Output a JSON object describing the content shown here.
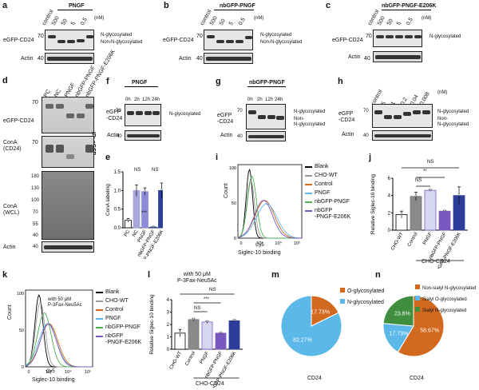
{
  "panels": {
    "a": {
      "label": "a",
      "header": "PNGF",
      "lanes": [
        "control",
        "500",
        "50",
        "5",
        "0.5"
      ],
      "unit": "(nM)",
      "row1": "eGFP-CD24",
      "row2": "Actin",
      "mw1": "70",
      "mw2": "40",
      "ann1": "N-glycosylated",
      "ann2": "Non-N-glycosylated"
    },
    "b": {
      "label": "b",
      "header": "nbGFP-PNGF",
      "lanes": [
        "control",
        "500",
        "50",
        "5",
        "0.5"
      ],
      "unit": "(nM)",
      "row1": "eGFP-CD24",
      "row2": "Actin",
      "mw1": "70",
      "mw2": "40",
      "ann1": "N-glycosylated",
      "ann2": "Non-N-glycosylated"
    },
    "c": {
      "label": "c",
      "header": "nbGFP-PNGF-E206K",
      "lanes": [
        "control",
        "500",
        "50",
        "5",
        "0.5"
      ],
      "unit": "(nM)",
      "row1": "eGFP-CD24",
      "row2": "Actin",
      "mw1": "70",
      "mw2": "40",
      "ann1": "N-glycosylated"
    },
    "d": {
      "label": "d",
      "lanes": [
        "PC",
        "NC",
        "PNGF",
        "nbGFP-PNGF",
        "nbGFP-PNGF-E206K"
      ],
      "rows": [
        "eGFP-CD24",
        "ConA\n(CD24)",
        "ConA\n(WCL)",
        "Actin"
      ],
      "ip": "IP: eGFP",
      "mws": [
        "70",
        "70",
        "180",
        "130",
        "100",
        "70",
        "55",
        "40",
        "40"
      ]
    },
    "e": {
      "label": "e",
      "ylabel": "ConA labeling",
      "ns1": "NS",
      "ns2": "NS",
      "stars": "***"
    },
    "f": {
      "label": "f",
      "header": "PNGF",
      "lanes": [
        "0h",
        "2h",
        "12h",
        "24h"
      ],
      "row1": "eGFP\n-CD24",
      "row2": "Actin",
      "mw1": "70",
      "mw2": "40",
      "ann1": "N-glycosylated"
    },
    "g": {
      "label": "g",
      "header": "nbGFP-PNGF",
      "lanes": [
        "0h",
        "2h",
        "12h",
        "24h"
      ],
      "row1": "eGFP\n-CD24",
      "row2": "Actin",
      "mw1": "70",
      "mw2": "40",
      "ann1": "N-glycosylated",
      "ann2": "Non-\nN-glycosylated"
    },
    "h": {
      "label": "h",
      "lanes": [
        "control",
        "5",
        "1",
        "0.2",
        "0.04",
        "0.008"
      ],
      "unit": "(nM)",
      "row1": "eGFP\n-CD24",
      "row2": "Actin",
      "mw1": "70",
      "mw2": "40",
      "ann1": "N-glycosylated",
      "ann2": "Non-\nN-glycosylated"
    },
    "i": {
      "label": "i",
      "ylabel": "Count",
      "xaxis": "Cy5",
      "xlabel": "Siglec-10 binding",
      "legend": [
        "Blank",
        "CHO-WT",
        "Control",
        "PNGF",
        "nbGFP-PNGF",
        "nbGFP\n-PNGF-E206K"
      ]
    },
    "j": {
      "label": "j",
      "ylabel": "Relative Siglec-10 binding",
      "group": "CHO-CD24",
      "ns_top": "NS",
      "stars": "**",
      "ns_mid": "NS"
    },
    "k": {
      "label": "k",
      "ylabel": "Count",
      "xaxis": "Cy5",
      "xlabel": "Siglec-10 binding",
      "inset": "with 50 μM\nP-3Fax-Neu5Ac",
      "legend": [
        "Blank",
        "CHO-WT",
        "Control",
        "PNGF",
        "nbGFP-PNGF",
        "nbGFP\n-PNGF-E206K"
      ]
    },
    "l": {
      "label": "l",
      "title": "with 50 μM\nP-3Fax-Neu5Ac",
      "ylabel": "Relative Siglec-10 binding",
      "group": "CHO-CD24",
      "ns_top": "NS",
      "stars": "***",
      "ns_mid": "NS"
    },
    "m": {
      "label": "m",
      "caption": "CD24",
      "legend": [
        "O-glycosylated",
        "N-glycosylated"
      ]
    },
    "n": {
      "label": "n",
      "caption": "CD24",
      "legend": [
        "Non-sialyl N-glycosylated",
        "Sialyl O-glycosylated",
        "Sialyl N-glycosylated"
      ]
    }
  },
  "colors": {
    "orange": "#d2691e",
    "blue": "#5bb8e8",
    "green": "#3f8f3f",
    "gray": "#888888",
    "purple": "#7a58c0",
    "navy": "#2c3e99",
    "lavender": "#a9a6dd",
    "lightpurple": "#8e8cd8"
  },
  "chart_data": [
    {
      "type": "bar",
      "panel": "e",
      "categories": [
        "PC",
        "NC",
        "PNGF",
        "nbGFP-PNGF",
        "nbGFP-PNGF-E206K"
      ],
      "values": [
        0.2,
        1.0,
        0.97,
        0.02,
        1.0
      ],
      "errors": [
        0.05,
        0.15,
        0.1,
        0.01,
        0.2
      ],
      "ylim": [
        0,
        1.5
      ],
      "yticks": [
        0.0,
        0.5,
        1.0,
        1.5
      ]
    },
    {
      "type": "bar",
      "panel": "j",
      "categories": [
        "CHO-WT",
        "Control",
        "PNGF",
        "nbGFP-PNGF",
        "nbGFP-PNGF-E206K"
      ],
      "values": [
        1.8,
        3.9,
        4.6,
        2.2,
        4.0
      ],
      "errors": [
        0.4,
        0.5,
        0.1,
        0.05,
        1.0
      ],
      "ylim": [
        0,
        6
      ],
      "yticks": [
        0,
        2,
        4,
        6
      ]
    },
    {
      "type": "bar",
      "panel": "l",
      "categories": [
        "CHO-WT",
        "Control",
        "PNGF",
        "nbGFP-PNGF",
        "nbGFP-PNGF-E206K"
      ],
      "values": [
        1.3,
        2.4,
        2.2,
        1.3,
        2.3
      ],
      "errors": [
        0.3,
        0.1,
        0.1,
        0.05,
        0.1
      ],
      "ylim": [
        0,
        4
      ],
      "yticks": [
        0,
        1,
        2,
        3,
        4
      ]
    },
    {
      "type": "pie",
      "panel": "m",
      "labels": [
        "O-glycosylated",
        "N-glycosylated"
      ],
      "values": [
        17.73,
        82.27
      ],
      "value_labels": [
        "17.73%",
        "82.27%"
      ]
    },
    {
      "type": "pie",
      "panel": "n",
      "labels": [
        "Non-sialyl N-glycosylated",
        "Sialyl O-glycosylated",
        "Sialyl N-glycosylated"
      ],
      "values": [
        58.67,
        17.73,
        23.6
      ],
      "value_labels": [
        "58.67%",
        "17.73%",
        "23.6%"
      ]
    }
  ]
}
